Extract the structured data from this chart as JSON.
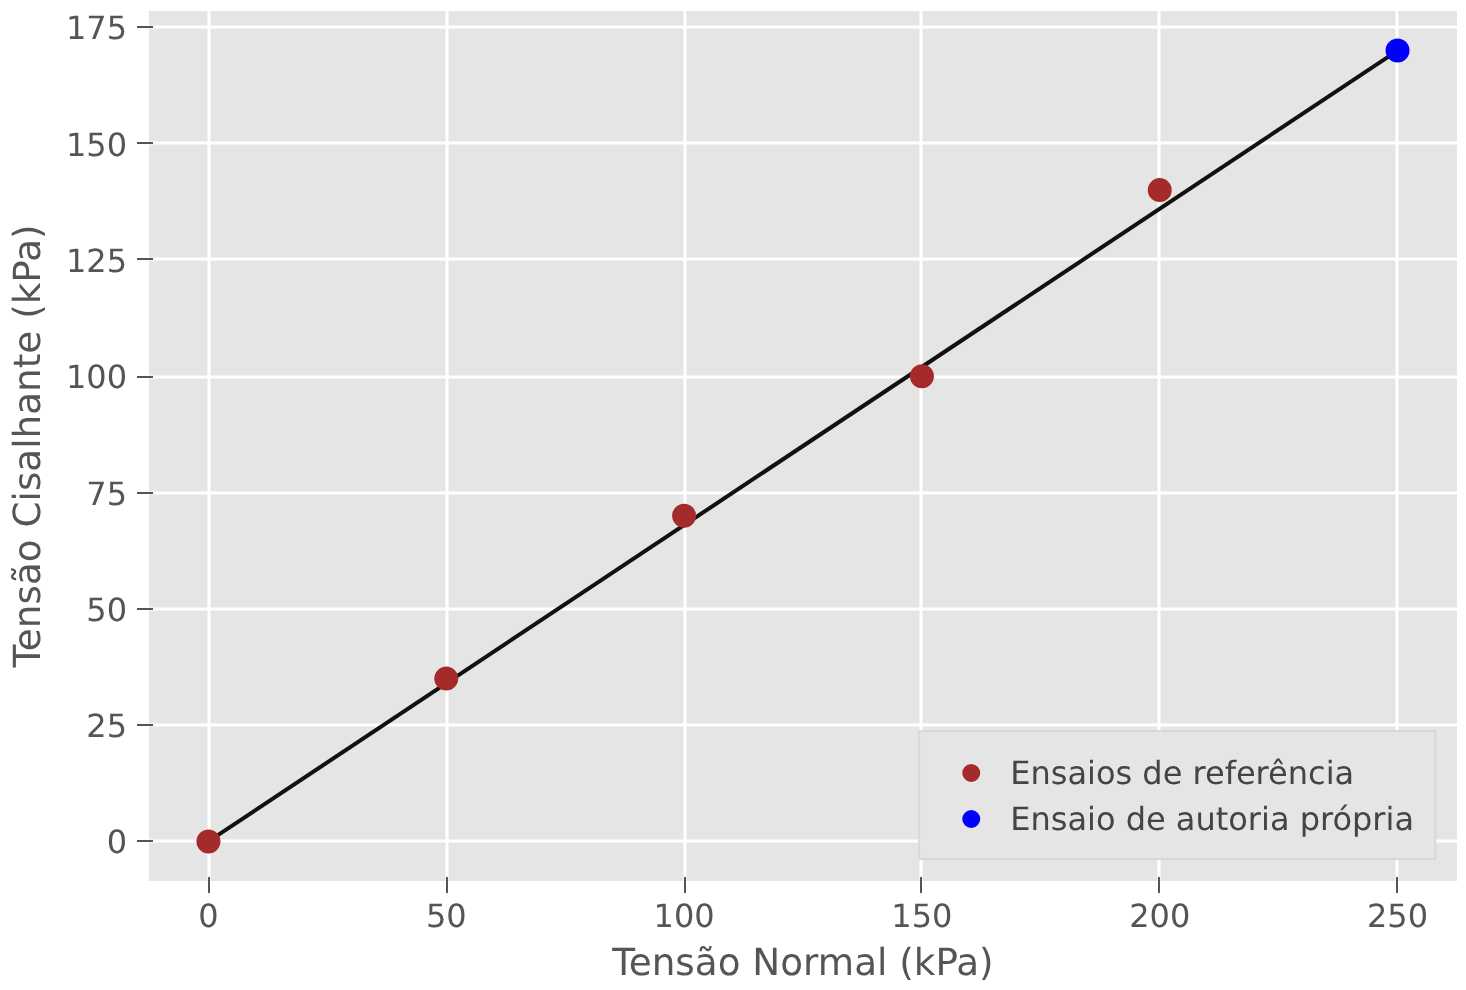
{
  "chart_data": {
    "type": "scatter",
    "xlabel": "Tensão Normal (kPa)",
    "ylabel": "Tensão Cisalhante (kPa)",
    "xlim": [
      -12.5,
      262.5
    ],
    "xticks": [
      0,
      50,
      100,
      150,
      200,
      250
    ],
    "ylim": [
      -8.5,
      178.5
    ],
    "yticks": [
      0,
      25,
      50,
      75,
      100,
      125,
      150,
      175
    ],
    "grid": true,
    "legend": "bottom right",
    "marker": "circle",
    "series": [
      {
        "type": "line",
        "marker": "none",
        "color": "#111111",
        "x": [
          0,
          250
        ],
        "values": [
          0,
          170
        ]
      },
      {
        "name": "Ensaios de referência",
        "color": "#a52a2a",
        "x": [
          0,
          50,
          100,
          150,
          200
        ],
        "values": [
          0,
          35,
          70,
          100,
          140
        ]
      },
      {
        "name": "Ensaio de autoria própria",
        "color": "#0000ff",
        "x": [
          250
        ],
        "values": [
          170
        ]
      }
    ]
  }
}
